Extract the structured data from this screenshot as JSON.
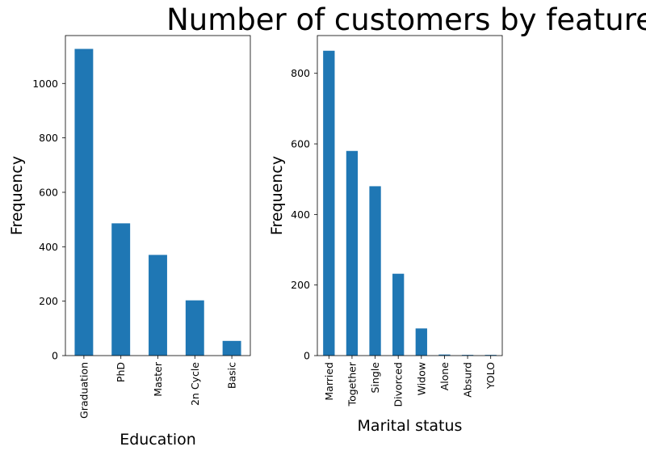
{
  "suptitle": "Number of customers by feature",
  "chart_data": [
    {
      "type": "bar",
      "title": "",
      "xlabel": "Education",
      "ylabel": "Frequency",
      "categories": [
        "Graduation",
        "PhD",
        "Master",
        "2n Cycle",
        "Basic"
      ],
      "values": [
        1127,
        486,
        370,
        203,
        54
      ],
      "ylim": [
        0,
        1176
      ],
      "yticks": [
        0,
        200,
        400,
        600,
        800,
        1000
      ],
      "color": "#1f77b4",
      "grid": false
    },
    {
      "type": "bar",
      "title": "",
      "xlabel": "Marital status",
      "ylabel": "Frequency",
      "categories": [
        "Married",
        "Together",
        "Single",
        "Divorced",
        "Widow",
        "Alone",
        "Absurd",
        "YOLO"
      ],
      "values": [
        864,
        580,
        480,
        232,
        77,
        3,
        2,
        2
      ],
      "ylim": [
        0,
        907
      ],
      "yticks": [
        0,
        200,
        400,
        600,
        800
      ],
      "color": "#1f77b4",
      "grid": false
    }
  ]
}
